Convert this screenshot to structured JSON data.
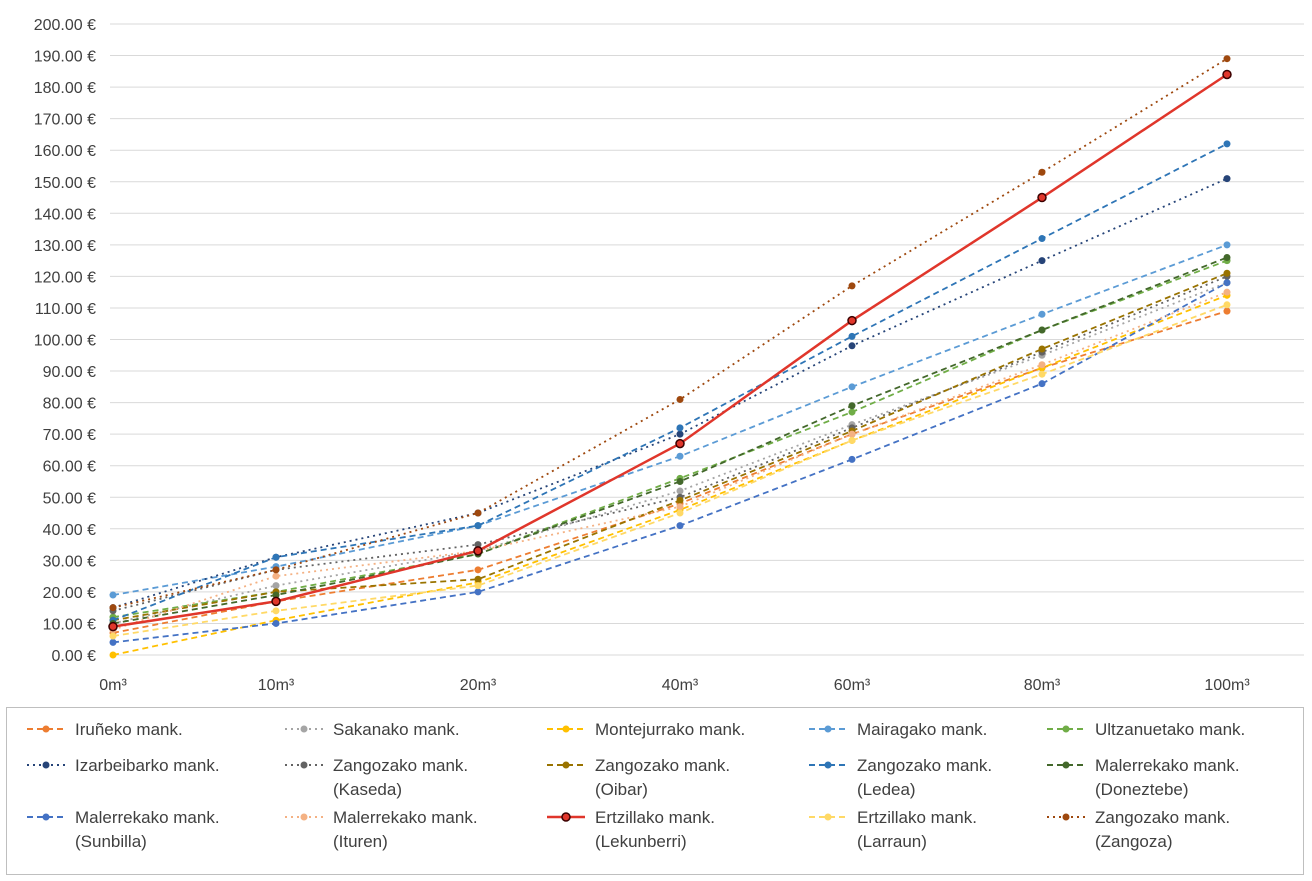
{
  "chart_data": {
    "type": "line",
    "categories": [
      "0m³",
      "10m³",
      "20m³",
      "40m³",
      "60m³",
      "80m³",
      "100m³"
    ],
    "ylim": [
      0,
      200
    ],
    "yticks": [
      "0.00 €",
      "10.00 €",
      "20.00 €",
      "30.00 €",
      "40.00 €",
      "50.00 €",
      "60.00 €",
      "70.00 €",
      "80.00 €",
      "90.00 €",
      "100.00 €",
      "110.00 €",
      "120.00 €",
      "130.00 €",
      "140.00 €",
      "150.00 €",
      "160.00 €",
      "170.00 €",
      "180.00 €",
      "190.00 €",
      "200.00 €"
    ],
    "grid": true,
    "legend_position": "bottom",
    "series": [
      {
        "name": "Iruñeko mank.",
        "color": "#ed7d31",
        "dash": "dash",
        "values": [
          7,
          17,
          27,
          48,
          70,
          91,
          109
        ]
      },
      {
        "name": "Sakanako mank.",
        "color": "#a5a5a5",
        "dash": "dot",
        "values": [
          10,
          22,
          33,
          52,
          73,
          95,
          118
        ]
      },
      {
        "name": "Montejurrako mank.",
        "color": "#ffc000",
        "dash": "dash",
        "values": [
          0,
          11,
          23,
          46,
          68,
          91,
          114
        ]
      },
      {
        "name": "Mairagako mank.",
        "color": "#5b9bd5",
        "dash": "dash",
        "values": [
          19,
          28,
          41,
          63,
          85,
          108,
          130
        ]
      },
      {
        "name": "Ultzanuetako mank.",
        "color": "#70ad47",
        "dash": "dash",
        "values": [
          12,
          20,
          32,
          56,
          77,
          103,
          125
        ]
      },
      {
        "name": "Izarbeibarko mank.",
        "color": "#264478",
        "dash": "dot",
        "values": [
          15,
          31,
          45,
          70,
          98,
          125,
          151
        ]
      },
      {
        "name": "Zangozako mank.\n(Kaseda)",
        "color": "#636363",
        "dash": "dot",
        "values": [
          14,
          27,
          35,
          50,
          72,
          96,
          120
        ]
      },
      {
        "name": "Zangozako mank.\n(Oibar)",
        "color": "#997300",
        "dash": "dash",
        "values": [
          11,
          20,
          24,
          49,
          71,
          97,
          121
        ]
      },
      {
        "name": "Zangozako mank.\n(Ledea)",
        "color": "#2e75b6",
        "dash": "dash",
        "values": [
          11,
          31,
          41,
          72,
          101,
          132,
          162
        ]
      },
      {
        "name": "Malerrekako mank.\n(Doneztebe)",
        "color": "#43682b",
        "dash": "dash",
        "values": [
          10,
          19,
          32,
          55,
          79,
          103,
          126
        ]
      },
      {
        "name": "Malerrekako mank.\n(Sunbilla)",
        "color": "#4472c4",
        "dash": "dash",
        "values": [
          4,
          10,
          20,
          41,
          62,
          86,
          118
        ]
      },
      {
        "name": "Malerrekako mank.\n(Ituren)",
        "color": "#f4b183",
        "dash": "dot",
        "values": [
          8,
          25,
          33,
          47,
          70,
          92,
          115
        ]
      },
      {
        "name": "Ertzillako mank.\n(Lekunberri)",
        "color": "#e0362b",
        "dash": "solid",
        "values": [
          9,
          17,
          33,
          67,
          106,
          145,
          184
        ]
      },
      {
        "name": "Ertzillako mank.\n(Larraun)",
        "color": "#ffd966",
        "dash": "dash",
        "values": [
          6,
          14,
          22,
          45,
          68,
          89,
          111
        ]
      },
      {
        "name": "Zangozako mank.\n(Zangoza)",
        "color": "#9e480e",
        "dash": "dot",
        "values": [
          15,
          27,
          45,
          81,
          117,
          153,
          189
        ]
      }
    ]
  }
}
